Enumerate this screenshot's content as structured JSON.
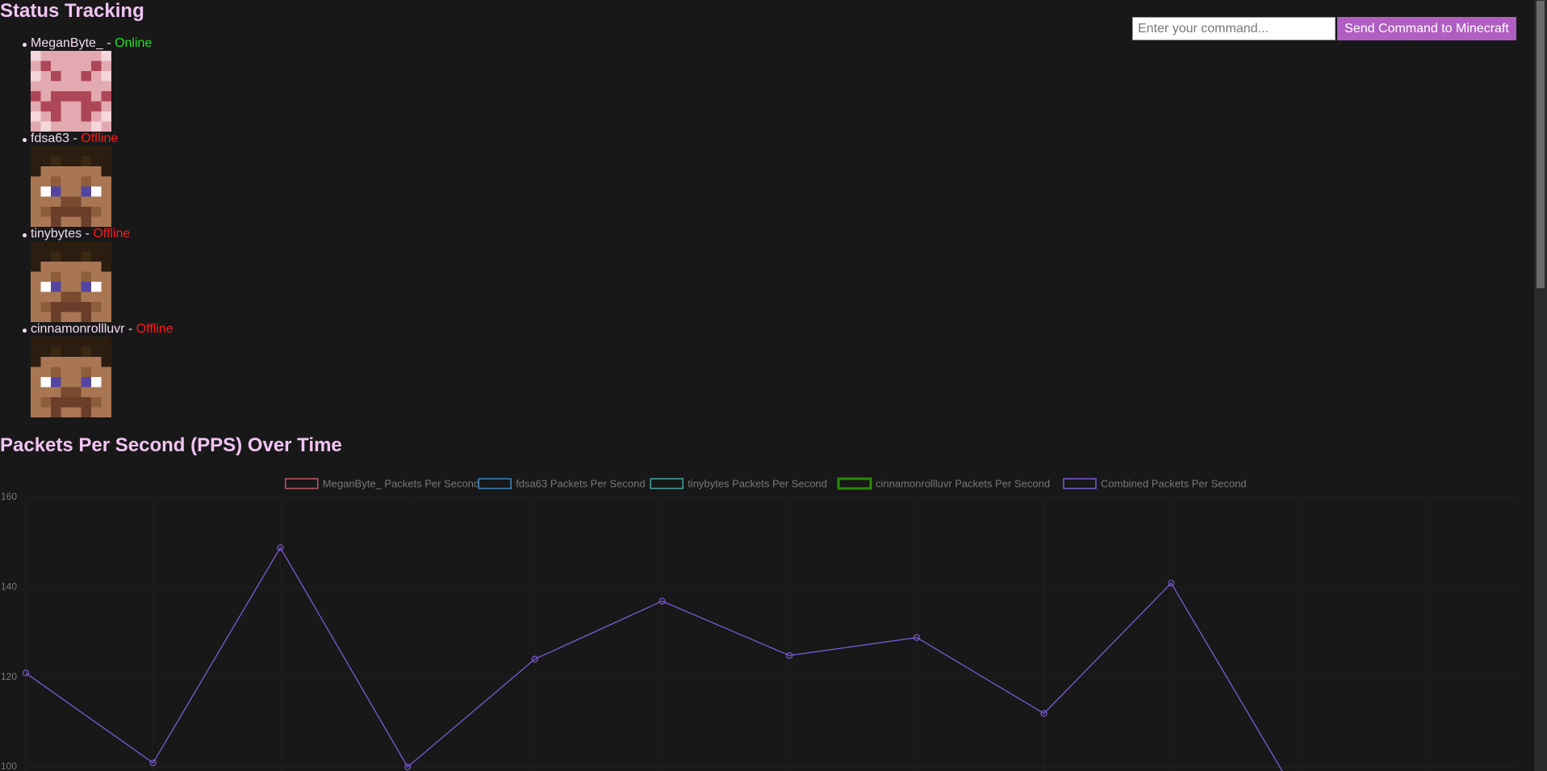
{
  "title": "Status Tracking",
  "separator": "-",
  "players": [
    {
      "name": "MeganByte_",
      "status": "Online",
      "color": "#1ee61e"
    },
    {
      "name": "fdsa63",
      "status": "Offline",
      "color": "#ff1a1a"
    },
    {
      "name": "tinybytes",
      "status": "Offline",
      "color": "#ff1a1a"
    },
    {
      "name": "cinnamonrollluvr",
      "status": "Offline",
      "color": "#ff1a1a"
    }
  ],
  "command": {
    "placeholder": "Enter your command...",
    "button": "Send Command to Minecraft"
  },
  "chart_data": {
    "type": "line",
    "title": "Packets Per Second (PPS) Over Time",
    "series": [
      {
        "name": "MeganByte_ Packets Per Second",
        "color": "#c0596b",
        "values": [
          null,
          null,
          null,
          null,
          null,
          null,
          null,
          null,
          null,
          null,
          null
        ]
      },
      {
        "name": "fdsa63 Packets Per Second",
        "color": "#3a85c2",
        "values": [
          null,
          null,
          null,
          null,
          null,
          null,
          null,
          null,
          null,
          null,
          null
        ]
      },
      {
        "name": "tinybytes Packets Per Second",
        "color": "#47a2a2",
        "values": [
          null,
          null,
          null,
          null,
          null,
          null,
          null,
          null,
          null,
          null,
          null
        ]
      },
      {
        "name": "cinnamonrollluvr Packets Per Second",
        "color": "#2a8a0a",
        "values": [
          null,
          null,
          null,
          null,
          null,
          null,
          null,
          null,
          null,
          null,
          null
        ]
      },
      {
        "name": "Combined Packets Per Second",
        "color": "#7b5ad6",
        "values": [
          120.9,
          100.9,
          148.8,
          100,
          124,
          136.9,
          124.8,
          128.8,
          111.9,
          140.9,
          93
        ]
      }
    ],
    "ylim": [
      100,
      160
    ],
    "yticks": [
      100,
      120,
      140,
      160
    ],
    "grid": true
  }
}
